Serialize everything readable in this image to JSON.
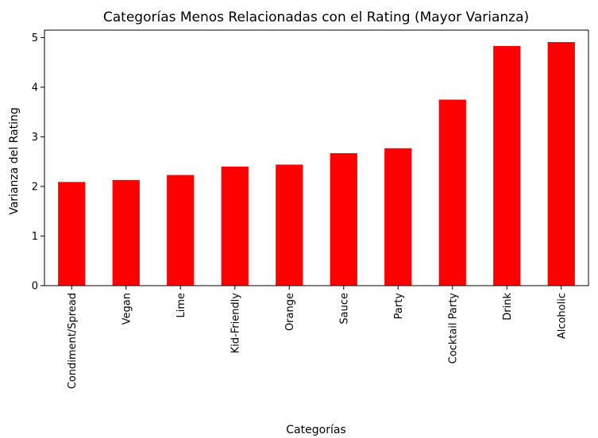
{
  "chart_data": {
    "type": "bar",
    "title": "Categorías Menos Relacionadas con el Rating (Mayor Varianza)",
    "xlabel": "Categorías",
    "ylabel": "Varianza del Rating",
    "categories": [
      "Condiment/Spread",
      "Vegan",
      "Lime",
      "Kid-Friendly",
      "Orange",
      "Sauce",
      "Party",
      "Cocktail Party",
      "Drink",
      "Alcoholic"
    ],
    "values": [
      2.09,
      2.13,
      2.23,
      2.4,
      2.44,
      2.67,
      2.77,
      3.75,
      4.83,
      4.91
    ],
    "ylim": [
      0,
      5.15
    ],
    "yticks": [
      0,
      1,
      2,
      3,
      4,
      5
    ],
    "bar_color": "#ff0000",
    "grid": false,
    "legend": "none"
  }
}
